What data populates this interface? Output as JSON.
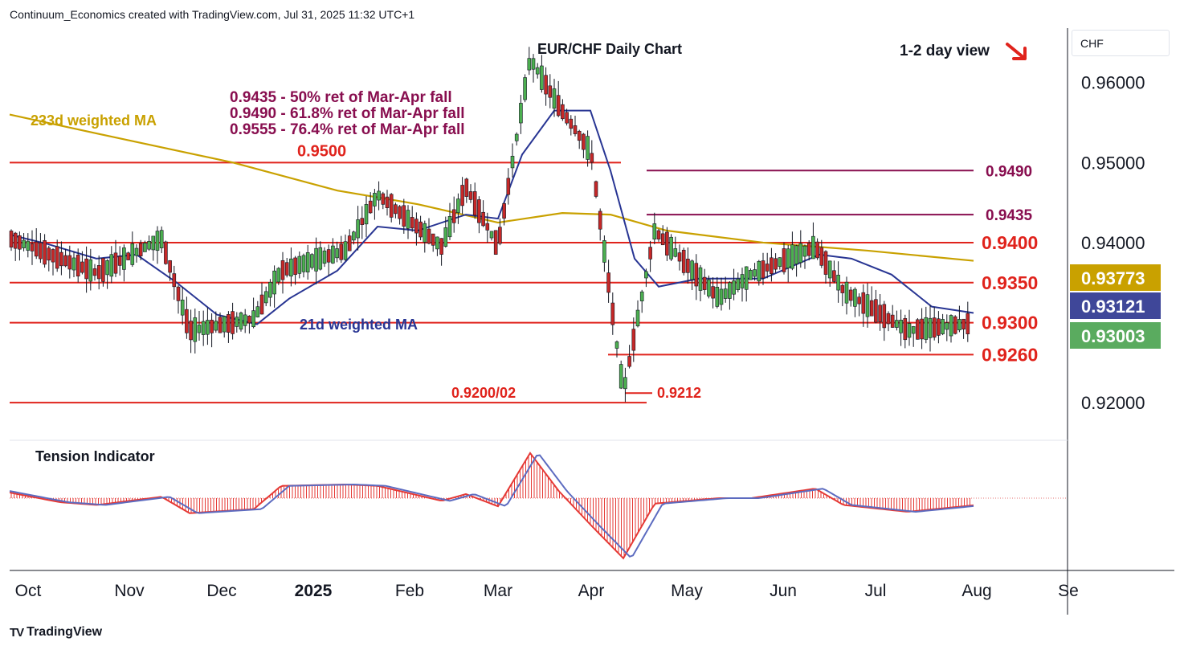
{
  "header": {
    "credit": "Continuum_Economics created with TradingView.com, Jul 31, 2025 11:32 UTC+1"
  },
  "footer": {
    "brand": "TradingView"
  },
  "currency_button": "CHF",
  "chart_data": {
    "type": "candlestick",
    "title": "EUR/CHF Daily Chart",
    "view": {
      "label": "1-2 day view",
      "direction": "down",
      "arrow_color": "#e0231c"
    },
    "ylim": [
      0.9153,
      0.9668
    ],
    "y_ticks": [
      {
        "value": 0.96,
        "label": "0.96000"
      },
      {
        "value": 0.95,
        "label": "0.95000"
      },
      {
        "value": 0.94,
        "label": "0.94000"
      },
      {
        "value": 0.92,
        "label": "0.92000"
      }
    ],
    "x_ticks": [
      {
        "label": "Oct",
        "bold": false
      },
      {
        "label": "Nov",
        "bold": false
      },
      {
        "label": "Dec",
        "bold": false
      },
      {
        "label": "2025",
        "bold": true
      },
      {
        "label": "Feb",
        "bold": false
      },
      {
        "label": "Mar",
        "bold": false
      },
      {
        "label": "Apr",
        "bold": false
      },
      {
        "label": "May",
        "bold": false
      },
      {
        "label": "Jun",
        "bold": false
      },
      {
        "label": "Jul",
        "bold": false
      },
      {
        "label": "Aug",
        "bold": false
      },
      {
        "label": "Se",
        "bold": false
      }
    ],
    "colors": {
      "up": "#4caf50",
      "down": "#c62828",
      "ma233": "#c9a100",
      "ma21": "#283593",
      "level": "#e0231c",
      "retrace": "#880e4f",
      "price": "#4caf50"
    },
    "price_path": [
      [
        "Oct",
        0.9412
      ],
      [
        "Oct",
        0.938
      ],
      [
        "Nov",
        0.9362
      ],
      [
        "Nov",
        0.9405
      ],
      [
        "Dec",
        0.929
      ],
      [
        "Dec",
        0.9305
      ],
      [
        "2025",
        0.9365
      ],
      [
        "2025",
        0.939
      ],
      [
        "Feb",
        0.946
      ],
      [
        "Feb",
        0.9395
      ],
      [
        "Mar",
        0.947
      ],
      [
        "Mar",
        0.9395
      ],
      [
        "Mar",
        0.963
      ],
      [
        "Apr",
        0.957
      ],
      [
        "Apr",
        0.9512
      ],
      [
        "Apr",
        0.9212
      ],
      [
        "May",
        0.9415
      ],
      [
        "May",
        0.933
      ],
      [
        "Jun",
        0.936
      ],
      [
        "Jun",
        0.9395
      ],
      [
        "Jul",
        0.934
      ],
      [
        "Jul",
        0.929
      ],
      [
        "Aug",
        0.93
      ]
    ],
    "moving_averages": [
      {
        "name": "233d weighted MA",
        "color": "#c9a100",
        "last_label": "0.93773",
        "last_value": 0.93773
      },
      {
        "name": "21d weighted MA",
        "color": "#283593",
        "last_label": "0.93121",
        "last_value": 0.93121
      }
    ],
    "current_price": {
      "label": "0.93003",
      "value": 0.93003
    },
    "levels": [
      {
        "value": 0.95,
        "label": "0.9500",
        "color": "#e0231c"
      },
      {
        "value": 0.94,
        "label": "0.9400",
        "color": "#e0231c"
      },
      {
        "value": 0.935,
        "label": "0.9350",
        "color": "#e0231c"
      },
      {
        "value": 0.93,
        "label": "0.9300",
        "color": "#e0231c"
      },
      {
        "value": 0.926,
        "label": "0.9260",
        "color": "#e0231c"
      },
      {
        "value": 0.92,
        "label": "0.9200/02",
        "color": "#e0231c"
      },
      {
        "value": 0.9212,
        "label": "0.9212",
        "color": "#e0231c"
      },
      {
        "value": 0.949,
        "label": "0.9490",
        "color": "#880e4f"
      },
      {
        "value": 0.9435,
        "label": "0.9435",
        "color": "#880e4f"
      }
    ],
    "annotations": [
      "0.9435 - 50% ret of Mar-Apr fall",
      "0.9490 - 61.8% ret of Mar-Apr fall",
      "0.9555 - 76.4% ret of Mar-Apr fall"
    ],
    "indicator": {
      "name": "Tension Indicator",
      "path": [
        [
          "Oct",
          0.6
        ],
        [
          "Oct",
          -0.3
        ],
        [
          "Nov",
          -0.5
        ],
        [
          "Nov",
          0.1
        ],
        [
          "Dec",
          -1.1
        ],
        [
          "Dec",
          -0.8
        ],
        [
          "2025",
          0.9
        ],
        [
          "2025",
          1.0
        ],
        [
          "Feb",
          0.9
        ],
        [
          "Feb",
          -0.2
        ],
        [
          "Mar",
          0.3
        ],
        [
          "Mar",
          -0.6
        ],
        [
          "Mar",
          3.3
        ],
        [
          "Apr",
          0.5
        ],
        [
          "Apr",
          -2.0
        ],
        [
          "Apr",
          -4.4
        ],
        [
          "May",
          -0.4
        ],
        [
          "May",
          0.0
        ],
        [
          "Jun",
          0.0
        ],
        [
          "Jun",
          0.7
        ],
        [
          "Jul",
          -0.5
        ],
        [
          "Jul",
          -1.0
        ],
        [
          "Aug",
          -0.5
        ]
      ]
    }
  }
}
